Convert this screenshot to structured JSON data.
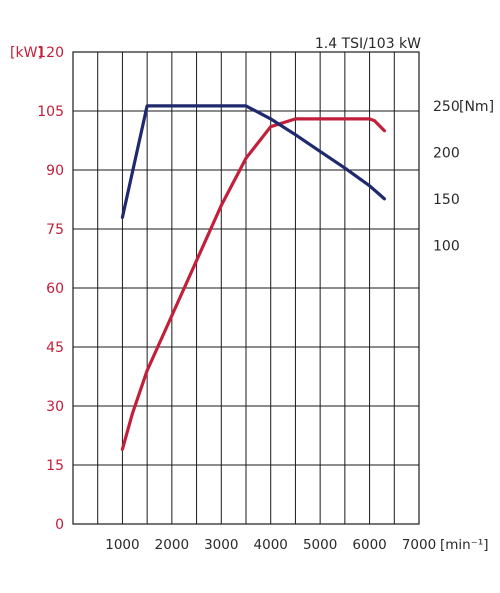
{
  "chart_data": {
    "type": "line",
    "title": "1.4 TSI/103 kW",
    "x_axis": {
      "ticks": [
        1000,
        2000,
        3000,
        4000,
        5000,
        6000,
        7000
      ],
      "tick_labels": [
        "1000",
        "2000",
        "3000",
        "4000",
        "5000",
        "6000",
        "7000"
      ],
      "unit_label": "[min⁻¹]",
      "range": [
        0,
        7000
      ],
      "grid_step": 500
    },
    "y_axis_left": {
      "unit_label": "[kW]",
      "ticks": [
        0,
        15,
        30,
        45,
        60,
        75,
        90,
        105,
        120
      ],
      "tick_labels": [
        "0",
        "15",
        "30",
        "45",
        "60",
        "75",
        "90",
        "105",
        "120"
      ],
      "range": [
        0,
        120
      ],
      "color": "#c21f3a"
    },
    "y_axis_right": {
      "unit_label": "[Nm]",
      "ticks": [
        100,
        150,
        200,
        250
      ],
      "tick_labels": [
        "100",
        "150",
        "200",
        "250"
      ],
      "range": [
        -200,
        308
      ],
      "color": "#2a2a2a"
    },
    "grid": true,
    "series": [
      {
        "axis": "left",
        "color": "#c21f3a",
        "x": [
          1000,
          1200,
          1500,
          2000,
          2500,
          3000,
          3500,
          4000,
          4500,
          5000,
          5500,
          6000,
          6100,
          6300
        ],
        "y": [
          19,
          28,
          39,
          53,
          67,
          81,
          93,
          101,
          103,
          103,
          103,
          103,
          102.5,
          100
        ]
      },
      {
        "axis": "right",
        "color": "#1f2a6e",
        "x": [
          1000,
          1500,
          3500,
          4000,
          4500,
          5000,
          5500,
          6000,
          6300
        ],
        "y": [
          130,
          250,
          250,
          236,
          219,
          201,
          183,
          164,
          150
        ]
      }
    ]
  }
}
